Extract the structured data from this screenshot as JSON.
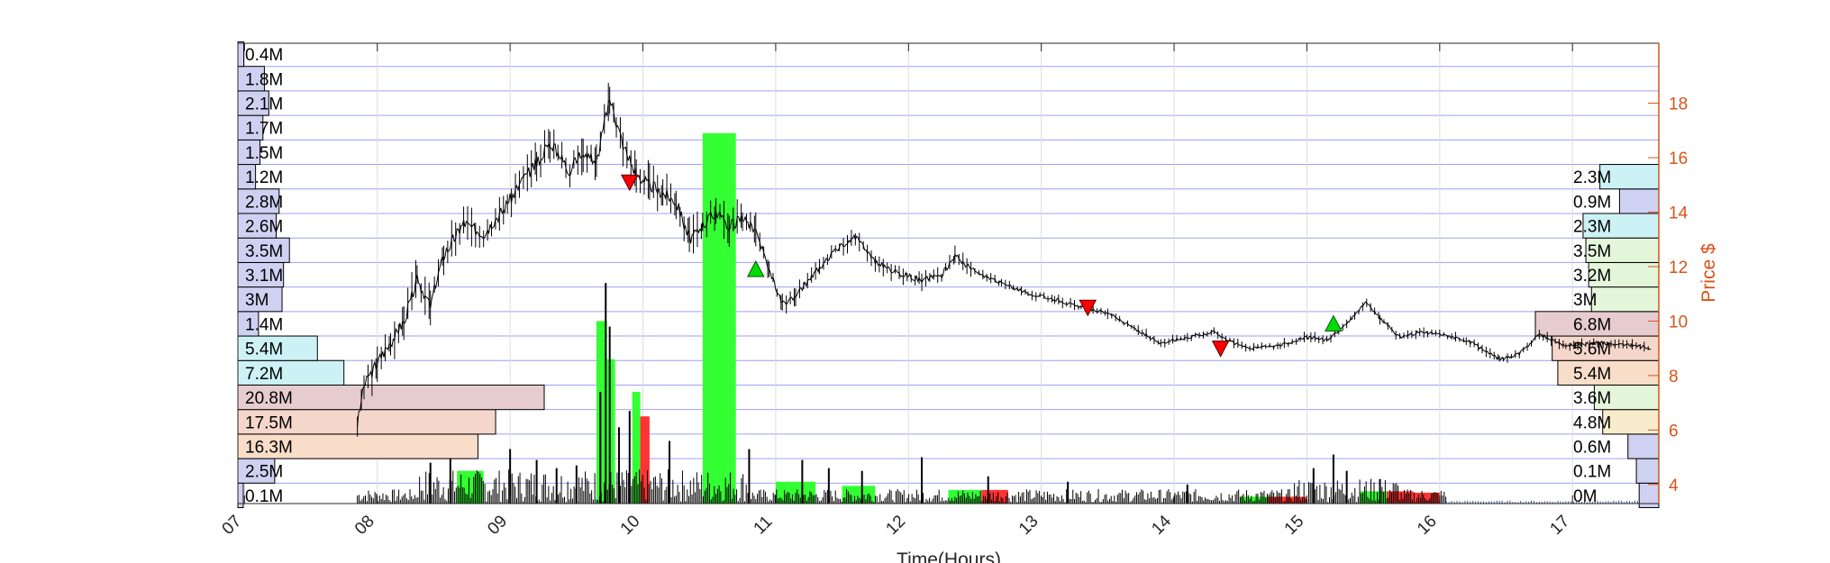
{
  "chart_data": {
    "type": "candlestick-with-volume-profile",
    "xlabel": "Time(Hours)",
    "ylabel_right": "Price $",
    "xlim": [
      6.95,
      17.65
    ],
    "ylim_right": [
      3.3,
      20.2
    ],
    "x_ticks": [
      {
        "value": 7,
        "label": "07"
      },
      {
        "value": 8,
        "label": "08"
      },
      {
        "value": 9,
        "label": "09"
      },
      {
        "value": 10,
        "label": "10"
      },
      {
        "value": 11,
        "label": "11"
      },
      {
        "value": 12,
        "label": "12"
      },
      {
        "value": 13,
        "label": "13"
      },
      {
        "value": 14,
        "label": "14"
      },
      {
        "value": 15,
        "label": "15"
      },
      {
        "value": 16,
        "label": "16"
      },
      {
        "value": 17,
        "label": "17"
      }
    ],
    "y_ticks_right": [
      {
        "value": 4,
        "label": "4"
      },
      {
        "value": 6,
        "label": "6"
      },
      {
        "value": 8,
        "label": "8"
      },
      {
        "value": 10,
        "label": "10"
      },
      {
        "value": 12,
        "label": "12"
      },
      {
        "value": 14,
        "label": "14"
      },
      {
        "value": 16,
        "label": "16"
      },
      {
        "value": 18,
        "label": "18"
      }
    ],
    "grid": true,
    "price_bins": [
      3.6,
      4.5,
      5.4,
      6.3,
      7.2,
      8.1,
      9.0,
      9.9,
      10.8,
      11.7,
      12.6,
      13.5,
      14.4,
      15.3,
      16.2,
      17.1,
      18.0,
      18.9,
      19.8
    ],
    "volume_profile_left": [
      {
        "label": "0.1M",
        "value": 0.1,
        "color": "#cfd1f2"
      },
      {
        "label": "2.5M",
        "value": 2.5,
        "color": "#cfd1f2"
      },
      {
        "label": "16.3M",
        "value": 16.3,
        "color": "#f8ddc8"
      },
      {
        "label": "17.5M",
        "value": 17.5,
        "color": "#f5d6cb"
      },
      {
        "label": "20.8M",
        "value": 20.8,
        "color": "#e6cccf"
      },
      {
        "label": "7.2M",
        "value": 7.2,
        "color": "#cdf2f6"
      },
      {
        "label": "5.4M",
        "value": 5.4,
        "color": "#cdf2f6"
      },
      {
        "label": "1.4M",
        "value": 1.4,
        "color": "#cfd1f2"
      },
      {
        "label": "3M",
        "value": 3.0,
        "color": "#cfd1f2"
      },
      {
        "label": "3.1M",
        "value": 3.1,
        "color": "#cfd1f2"
      },
      {
        "label": "3.5M",
        "value": 3.5,
        "color": "#cfd1f2"
      },
      {
        "label": "2.6M",
        "value": 2.6,
        "color": "#cfd1f2"
      },
      {
        "label": "2.8M",
        "value": 2.8,
        "color": "#cfd1f2"
      },
      {
        "label": "1.2M",
        "value": 1.2,
        "color": "#cfd1f2"
      },
      {
        "label": "1.5M",
        "value": 1.5,
        "color": "#cfd1f2"
      },
      {
        "label": "1.7M",
        "value": 1.7,
        "color": "#cfd1f2"
      },
      {
        "label": "2.1M",
        "value": 2.1,
        "color": "#cfd1f2"
      },
      {
        "label": "1.8M",
        "value": 1.8,
        "color": "#cfd1f2"
      },
      {
        "label": "0.4M",
        "value": 0.4,
        "color": "#cfd1f2"
      }
    ],
    "volume_profile_right": [
      {
        "label": "0M",
        "value": 0.35,
        "color": "#cfd1f2"
      },
      {
        "label": "0.1M",
        "value": 0.4,
        "color": "#cfd1f2"
      },
      {
        "label": "0.6M",
        "value": 0.55,
        "color": "#cfd1f2"
      },
      {
        "label": "4.8M",
        "value": 1.0,
        "color": "#f8eccc"
      },
      {
        "label": "3.6M",
        "value": 1.15,
        "color": "#e4f6da"
      },
      {
        "label": "5.4M",
        "value": 1.8,
        "color": "#f8ddc8"
      },
      {
        "label": "5.6M",
        "value": 1.9,
        "color": "#f5d6cb"
      },
      {
        "label": "6.8M",
        "value": 2.2,
        "color": "#e6cccf"
      },
      {
        "label": "3M",
        "value": 1.2,
        "color": "#e4f6da"
      },
      {
        "label": "3.2M",
        "value": 1.25,
        "color": "#e4f6da"
      },
      {
        "label": "3.5M",
        "value": 1.3,
        "color": "#e4f6da"
      },
      {
        "label": "2.3M",
        "value": 1.35,
        "color": "#cdf2f6"
      },
      {
        "label": "0.9M",
        "value": 0.7,
        "color": "#cfd1f2"
      },
      {
        "label": "2.3M",
        "value": 1.05,
        "color": "#cdf2f6"
      }
    ],
    "price_path": [
      [
        7.85,
        6.2
      ],
      [
        7.9,
        7.6
      ],
      [
        8.0,
        8.5
      ],
      [
        8.1,
        9.2
      ],
      [
        8.2,
        10.0
      ],
      [
        8.3,
        11.5
      ],
      [
        8.4,
        10.6
      ],
      [
        8.5,
        12.4
      ],
      [
        8.65,
        13.6
      ],
      [
        8.8,
        13.2
      ],
      [
        8.95,
        14.1
      ],
      [
        9.1,
        15.2
      ],
      [
        9.2,
        15.8
      ],
      [
        9.3,
        16.6
      ],
      [
        9.45,
        15.5
      ],
      [
        9.55,
        16.3
      ],
      [
        9.65,
        15.8
      ],
      [
        9.75,
        18.2
      ],
      [
        9.8,
        17.3
      ],
      [
        9.85,
        16.5
      ],
      [
        9.95,
        15.4
      ],
      [
        10.05,
        15.0
      ],
      [
        10.15,
        14.7
      ],
      [
        10.25,
        14.4
      ],
      [
        10.35,
        13.0
      ],
      [
        10.45,
        13.5
      ],
      [
        10.55,
        14.0
      ],
      [
        10.65,
        13.5
      ],
      [
        10.75,
        13.8
      ],
      [
        10.85,
        13.2
      ],
      [
        10.95,
        11.9
      ],
      [
        11.05,
        10.6
      ],
      [
        11.15,
        10.9
      ],
      [
        11.3,
        11.8
      ],
      [
        11.45,
        12.6
      ],
      [
        11.6,
        13.1
      ],
      [
        11.75,
        12.2
      ],
      [
        11.9,
        11.8
      ],
      [
        12.1,
        11.5
      ],
      [
        12.25,
        11.7
      ],
      [
        12.35,
        12.4
      ],
      [
        12.5,
        11.8
      ],
      [
        12.7,
        11.4
      ],
      [
        12.9,
        11.0
      ],
      [
        13.1,
        10.8
      ],
      [
        13.3,
        10.5
      ],
      [
        13.5,
        10.3
      ],
      [
        13.7,
        9.7
      ],
      [
        13.9,
        9.2
      ],
      [
        14.1,
        9.4
      ],
      [
        14.3,
        9.6
      ],
      [
        14.45,
        9.2
      ],
      [
        14.6,
        9.0
      ],
      [
        14.8,
        9.1
      ],
      [
        15.0,
        9.4
      ],
      [
        15.15,
        9.3
      ],
      [
        15.3,
        9.9
      ],
      [
        15.45,
        10.7
      ],
      [
        15.55,
        10.1
      ],
      [
        15.7,
        9.4
      ],
      [
        15.85,
        9.6
      ],
      [
        16.0,
        9.5
      ],
      [
        16.2,
        9.3
      ],
      [
        16.35,
        8.9
      ],
      [
        16.45,
        8.6
      ],
      [
        16.6,
        8.8
      ],
      [
        16.75,
        9.5
      ],
      [
        16.95,
        9.1
      ],
      [
        17.2,
        9.2
      ],
      [
        17.45,
        9.1
      ],
      [
        17.6,
        9.0
      ]
    ],
    "buy_signals": [
      [
        10.85,
        11.9
      ],
      [
        15.2,
        9.9
      ]
    ],
    "sell_signals": [
      [
        9.9,
        15.1
      ],
      [
        13.35,
        10.5
      ],
      [
        14.35,
        9.0
      ]
    ],
    "highlight_bars": [
      {
        "x0": 8.6,
        "x1": 8.8,
        "value": 4.5,
        "color": "#33ff33"
      },
      {
        "x0": 9.65,
        "x1": 9.73,
        "value": 10.0,
        "color": "#33ff33"
      },
      {
        "x0": 9.73,
        "x1": 9.79,
        "value": 8.6,
        "color": "#33ff33"
      },
      {
        "x0": 9.92,
        "x1": 9.98,
        "value": 7.4,
        "color": "#33ff33"
      },
      {
        "x0": 9.98,
        "x1": 10.05,
        "value": 6.5,
        "color": "#ff3333"
      },
      {
        "x0": 10.45,
        "x1": 10.7,
        "value": 16.9,
        "color": "#33ff33"
      },
      {
        "x0": 11.0,
        "x1": 11.3,
        "value": 4.1,
        "color": "#33ff33"
      },
      {
        "x0": 11.5,
        "x1": 11.75,
        "value": 3.95,
        "color": "#33ff33"
      },
      {
        "x0": 12.3,
        "x1": 12.55,
        "value": 3.8,
        "color": "#33ff33"
      },
      {
        "x0": 12.55,
        "x1": 12.75,
        "value": 3.8,
        "color": "#ff3333"
      },
      {
        "x0": 14.5,
        "x1": 14.7,
        "value": 3.55,
        "color": "#33ff33"
      },
      {
        "x0": 14.7,
        "x1": 15.0,
        "value": 3.55,
        "color": "#ff3333"
      },
      {
        "x0": 15.4,
        "x1": 15.6,
        "value": 3.75,
        "color": "#33ff33"
      },
      {
        "x0": 15.6,
        "x1": 15.8,
        "value": 3.75,
        "color": "#ff3333"
      },
      {
        "x0": 15.8,
        "x1": 16.0,
        "value": 3.7,
        "color": "#ff3333"
      }
    ],
    "volume_spikes": [
      [
        8.4,
        4.8
      ],
      [
        8.55,
        5.1
      ],
      [
        9.0,
        5.3
      ],
      [
        9.2,
        4.9
      ],
      [
        9.35,
        4.6
      ],
      [
        9.5,
        4.7
      ],
      [
        9.68,
        7.4
      ],
      [
        9.72,
        11.4
      ],
      [
        9.75,
        9.8
      ],
      [
        9.82,
        6.1
      ],
      [
        9.9,
        6.7
      ],
      [
        10.2,
        5.6
      ],
      [
        10.8,
        5.3
      ],
      [
        11.2,
        4.9
      ],
      [
        11.4,
        4.6
      ],
      [
        11.65,
        4.5
      ],
      [
        12.1,
        5.0
      ],
      [
        12.6,
        4.3
      ],
      [
        13.2,
        4.1
      ],
      [
        14.1,
        4.0
      ],
      [
        15.05,
        4.6
      ],
      [
        15.2,
        5.1
      ],
      [
        15.3,
        4.5
      ],
      [
        15.55,
        4.2
      ]
    ]
  }
}
